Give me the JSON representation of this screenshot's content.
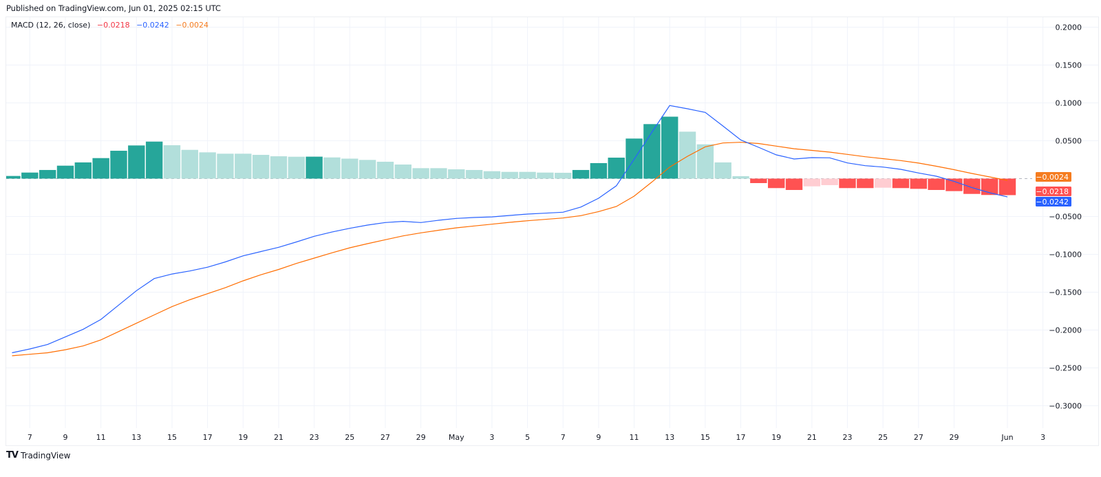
{
  "header": {
    "published": "Published on TradingView.com, Jun 01, 2025 02:15 UTC"
  },
  "legend": {
    "name": "MACD (12, 26, close)",
    "histogram_value": "−0.0218",
    "macd_value": "−0.0242",
    "signal_value": "−0.0024"
  },
  "price_tags": [
    {
      "label": "−0.0024",
      "color": "#f57c1f",
      "value": -0.0024,
      "y": 257
    },
    {
      "label": "−0.0218",
      "color": "#ff5252",
      "value": -0.0218,
      "y": 278
    },
    {
      "label": "−0.0242",
      "color": "#2962ff",
      "value": -0.0242,
      "y": 293
    }
  ],
  "footer": {
    "logo": "TV",
    "brand": "TradingView"
  },
  "colors": {
    "macd": "#2962ff",
    "signal": "#ff6d00",
    "hist_pos_rising": "#26a69a",
    "hist_pos_falling": "#b2dfdb",
    "hist_neg_falling": "#ff5252",
    "hist_neg_rising": "#ffcdd2",
    "grid": "#f0f3fa"
  },
  "chart_data": {
    "type": "bar+line",
    "title": "MACD (12, 26, close)",
    "xlabel": "",
    "ylabel": "",
    "ylim": [
      -0.34,
      0.21
    ],
    "grid": true,
    "y_ticks": [
      "0.2000",
      "0.1500",
      "0.1000",
      "0.0500",
      "−0.0500",
      "−0.1000",
      "−0.1500",
      "−0.2000",
      "−0.2500",
      "−0.3000"
    ],
    "y_tick_values": [
      0.2,
      0.15,
      0.1,
      0.05,
      -0.05,
      -0.1,
      -0.15,
      -0.2,
      -0.25,
      -0.3
    ],
    "x_ticks": [
      {
        "label": "7",
        "day": 1
      },
      {
        "label": "9",
        "day": 3
      },
      {
        "label": "11",
        "day": 5
      },
      {
        "label": "13",
        "day": 7
      },
      {
        "label": "15",
        "day": 9
      },
      {
        "label": "17",
        "day": 11
      },
      {
        "label": "19",
        "day": 13
      },
      {
        "label": "21",
        "day": 15
      },
      {
        "label": "23",
        "day": 17
      },
      {
        "label": "25",
        "day": 19
      },
      {
        "label": "27",
        "day": 21
      },
      {
        "label": "29",
        "day": 23
      },
      {
        "label": "May",
        "day": 25
      },
      {
        "label": "3",
        "day": 27
      },
      {
        "label": "5",
        "day": 29
      },
      {
        "label": "7",
        "day": 31
      },
      {
        "label": "9",
        "day": 33
      },
      {
        "label": "11",
        "day": 35
      },
      {
        "label": "13",
        "day": 37
      },
      {
        "label": "15",
        "day": 39
      },
      {
        "label": "17",
        "day": 41
      },
      {
        "label": "19",
        "day": 43
      },
      {
        "label": "21",
        "day": 45
      },
      {
        "label": "23",
        "day": 47
      },
      {
        "label": "25",
        "day": 49
      },
      {
        "label": "27",
        "day": 51
      },
      {
        "label": "29",
        "day": 53
      },
      {
        "label": "Jun",
        "day": 56
      },
      {
        "label": "3",
        "day": 58
      }
    ],
    "x": [
      "Apr 6",
      "Apr 7",
      "Apr 8",
      "Apr 9",
      "Apr 10",
      "Apr 11",
      "Apr 12",
      "Apr 13",
      "Apr 14",
      "Apr 15",
      "Apr 16",
      "Apr 17",
      "Apr 18",
      "Apr 19",
      "Apr 20",
      "Apr 21",
      "Apr 22",
      "Apr 23",
      "Apr 24",
      "Apr 25",
      "Apr 26",
      "Apr 27",
      "Apr 28",
      "Apr 29",
      "Apr 30",
      "May 1",
      "May 2",
      "May 3",
      "May 4",
      "May 5",
      "May 6",
      "May 7",
      "May 8",
      "May 9",
      "May 10",
      "May 11",
      "May 12",
      "May 13",
      "May 14",
      "May 15",
      "May 16",
      "May 17",
      "May 18",
      "May 19",
      "May 20",
      "May 21",
      "May 22",
      "May 23",
      "May 24",
      "May 25",
      "May 26",
      "May 27",
      "May 28",
      "May 29",
      "May 30",
      "May 31",
      "Jun 1"
    ],
    "series": [
      {
        "name": "Histogram",
        "type": "bar",
        "values": [
          0.0035,
          0.008,
          0.0114,
          0.0171,
          0.0214,
          0.0271,
          0.0368,
          0.0438,
          0.0489,
          0.0441,
          0.038,
          0.0347,
          0.0329,
          0.0329,
          0.0314,
          0.0295,
          0.0289,
          0.029,
          0.028,
          0.0264,
          0.0247,
          0.0223,
          0.0186,
          0.0138,
          0.0138,
          0.0123,
          0.0114,
          0.0098,
          0.0089,
          0.0089,
          0.008,
          0.0077,
          0.0114,
          0.0205,
          0.0277,
          0.0529,
          0.072,
          0.0818,
          0.062,
          0.0453,
          0.0214,
          0.0032,
          -0.0059,
          -0.0125,
          -0.015,
          -0.0102,
          -0.0086,
          -0.0125,
          -0.0125,
          -0.012,
          -0.0125,
          -0.0135,
          -0.015,
          -0.0165,
          -0.0202,
          -0.0216,
          -0.0218
        ],
        "shades": [
          "d",
          "d",
          "d",
          "d",
          "d",
          "d",
          "d",
          "d",
          "d",
          "l",
          "l",
          "l",
          "l",
          "l",
          "l",
          "l",
          "l",
          "d",
          "l",
          "l",
          "l",
          "l",
          "l",
          "l",
          "l",
          "l",
          "l",
          "l",
          "l",
          "l",
          "l",
          "l",
          "d",
          "d",
          "d",
          "d",
          "d",
          "d",
          "l",
          "l",
          "l",
          "l",
          "d",
          "d",
          "d",
          "l",
          "l",
          "d",
          "d",
          "l",
          "d",
          "d",
          "d",
          "d",
          "d",
          "d",
          "d"
        ]
      },
      {
        "name": "MACD",
        "type": "line",
        "color": "#2962ff",
        "values": [
          -0.23,
          -0.225,
          -0.219,
          -0.209,
          -0.199,
          -0.186,
          -0.167,
          -0.148,
          -0.132,
          -0.126,
          -0.122,
          -0.117,
          -0.11,
          -0.102,
          -0.0964,
          -0.0907,
          -0.0836,
          -0.0762,
          -0.0705,
          -0.0656,
          -0.0614,
          -0.058,
          -0.0565,
          -0.058,
          -0.055,
          -0.0525,
          -0.0514,
          -0.0505,
          -0.0486,
          -0.0468,
          -0.0456,
          -0.0444,
          -0.0375,
          -0.0259,
          -0.0095,
          0.0255,
          0.0614,
          0.0965,
          0.0923,
          0.0875,
          0.0695,
          0.0511,
          0.0414,
          0.0314,
          0.0259,
          0.0277,
          0.0275,
          0.0207,
          0.0171,
          0.0153,
          0.0123,
          0.0075,
          0.0032,
          -0.0036,
          -0.0118,
          -0.0186,
          -0.0242
        ]
      },
      {
        "name": "Signal",
        "type": "line",
        "color": "#ff6d00",
        "values": [
          -0.234,
          -0.232,
          -0.23,
          -0.226,
          -0.221,
          -0.213,
          -0.202,
          -0.191,
          -0.18,
          -0.169,
          -0.16,
          -0.152,
          -0.144,
          -0.135,
          -0.127,
          -0.12,
          -0.112,
          -0.105,
          -0.098,
          -0.0914,
          -0.0859,
          -0.0807,
          -0.0756,
          -0.0716,
          -0.0682,
          -0.065,
          -0.0625,
          -0.0602,
          -0.0577,
          -0.0556,
          -0.0538,
          -0.052,
          -0.0489,
          -0.0435,
          -0.0368,
          -0.0232,
          -0.0045,
          0.0153,
          0.0295,
          0.042,
          0.0471,
          0.048,
          0.0464,
          0.0429,
          0.0395,
          0.0373,
          0.035,
          0.032,
          0.0289,
          0.0264,
          0.0238,
          0.0205,
          0.0164,
          0.0118,
          0.0068,
          0.0023,
          -0.0024
        ]
      }
    ],
    "last_values": {
      "histogram": -0.0218,
      "macd": -0.0242,
      "signal": -0.0024
    }
  }
}
